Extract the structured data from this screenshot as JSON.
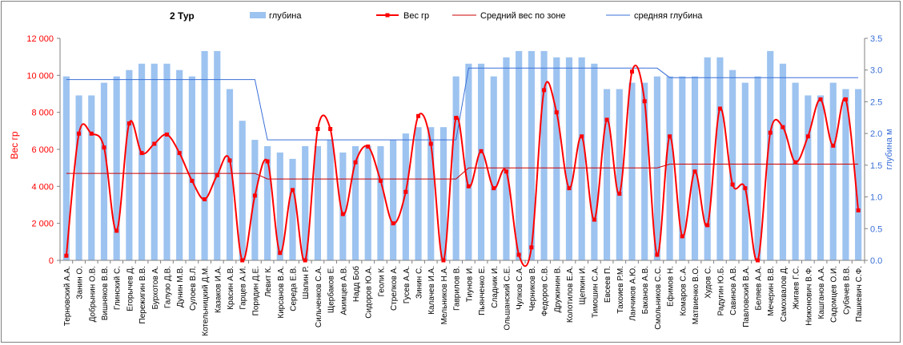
{
  "chart_data": {
    "type": "bar",
    "title": "2 Тур",
    "ylabel": "Вес гр",
    "ylabel_right": "глубина м",
    "ylim": [
      0,
      12000
    ],
    "ylim_right": [
      0,
      3.5
    ],
    "yticks": [
      "0",
      "2 000",
      "4 000",
      "6 000",
      "8 000",
      "10 000",
      "12 000"
    ],
    "yticks_right": [
      "0.0",
      "0.5",
      "1.0",
      "1.5",
      "2.0",
      "2.5",
      "3.0",
      "3.5"
    ],
    "legend_position": "top",
    "colors": {
      "bar": "#9dc3f0",
      "weight": "#ff0000",
      "avg_weight": "#cc0000",
      "avg_depth": "#3a6fd8",
      "left_axis": "#ff0000",
      "right_axis": "#3a6fd8"
    },
    "categories": [
      "Терновский А.А.",
      "Занин О.",
      "Добрынин О.В.",
      "Вишняков В.В.",
      "Глинский С.",
      "Егорычев Д.",
      "Пережигин В.В.",
      "Бурхотов А.",
      "Галузо Д.В.",
      "Дунин М.В.",
      "Сулоев В.Л.",
      "Котельницкий Д.М.",
      "Казаков И.А.",
      "Красин А.В.",
      "Гарцев А.И.",
      "Порядин Д.Е.",
      "Левит К.",
      "Кирсанов В.А.",
      "Середа Е.В.",
      "Шапин Р.",
      "Сильченков С.А.",
      "Щербаков Е.",
      "Акимцев А.В.",
      "Надд Боб",
      "Сидоров Ю.А.",
      "Геоли К.",
      "Стрелков А.",
      "Гусев А.А.",
      "Зинин С.",
      "Калачев И.А.",
      "Мельников Н.А.",
      "Гаврилов В.",
      "Тиунов И.",
      "Пьянченко Е.",
      "Сладник И.",
      "Ольшанский С.Е.",
      "Чулков С.А.",
      "Черников В.",
      "Федоров С.В.",
      "Дружинин В.",
      "Колотилов Е.А.",
      "Щепкин И.",
      "Тимошин С.А.",
      "Евсеев П.",
      "Тахоиев Р.М.",
      "Ланчиков А.Ю.",
      "Баканов А.В.",
      "Смольников С.С.",
      "Ефимов Н.",
      "Комаров С.А.",
      "Матвиенко В.О.",
      "Худов С.",
      "Радугин Ю.Б.",
      "Савинов А.В.",
      "Павловский В.А.",
      "Беляев А.А.",
      "Мечерин В.В.",
      "Самохвалов Д.",
      "Жигаев Г.С.",
      "Нижонович В.Ф.",
      "Кашганов А.А.",
      "Садомцев О.И.",
      "Субачев В.В.",
      "Пашкевич С.Ф."
    ],
    "series": [
      {
        "name": "глубина",
        "axis": "right",
        "type": "bar",
        "values": [
          2.9,
          2.6,
          2.6,
          2.8,
          2.9,
          3.0,
          3.1,
          3.1,
          3.1,
          3.0,
          2.9,
          3.3,
          3.3,
          2.7,
          2.2,
          1.9,
          1.8,
          1.7,
          1.6,
          1.8,
          1.8,
          1.9,
          1.7,
          1.8,
          1.8,
          1.8,
          1.9,
          2.0,
          2.1,
          2.1,
          2.1,
          2.9,
          3.1,
          3.1,
          2.9,
          3.2,
          3.3,
          3.3,
          3.3,
          3.2,
          3.2,
          3.2,
          3.1,
          2.7,
          2.7,
          2.8,
          2.8,
          2.9,
          2.9,
          2.9,
          2.9,
          3.2,
          3.2,
          3.0,
          2.8,
          2.9,
          3.3,
          3.1,
          2.8,
          2.6,
          2.6,
          2.8,
          2.7,
          2.7
        ]
      },
      {
        "name": "Вес гр",
        "axis": "left",
        "type": "line",
        "values": [
          250,
          6850,
          6850,
          6100,
          1600,
          7400,
          5800,
          6300,
          6800,
          5800,
          4300,
          3300,
          4600,
          5400,
          0,
          3500,
          5350,
          400,
          3800,
          0,
          7100,
          7100,
          2500,
          5300,
          6150,
          4300,
          2000,
          3700,
          7800,
          6300,
          0,
          7700,
          4000,
          5900,
          3900,
          4800,
          300,
          700,
          9200,
          8000,
          3900,
          6700,
          2200,
          7600,
          3600,
          10200,
          8600,
          300,
          6700,
          1300,
          4800,
          1900,
          8200,
          4100,
          3900,
          0,
          6900,
          7200,
          5300,
          6700,
          8700,
          6200,
          8700,
          2700
        ]
      },
      {
        "name": "Средний вес по зоне",
        "axis": "left",
        "type": "line",
        "values": [
          4700,
          4700,
          4700,
          4700,
          4700,
          4700,
          4700,
          4700,
          4700,
          4700,
          4700,
          4700,
          4700,
          4700,
          4700,
          4700,
          4400,
          4400,
          4400,
          4400,
          4400,
          4400,
          4400,
          4400,
          4400,
          4400,
          4400,
          4400,
          4400,
          4400,
          4400,
          4400,
          5000,
          5000,
          5000,
          5000,
          5000,
          5000,
          5000,
          5000,
          5000,
          5000,
          5000,
          5000,
          5000,
          5000,
          5000,
          5000,
          5200,
          5200,
          5200,
          5200,
          5200,
          5200,
          5200,
          5200,
          5200,
          5200,
          5200,
          5200,
          5200,
          5200,
          5200,
          5200
        ]
      },
      {
        "name": "средняя глубина",
        "axis": "right",
        "type": "line",
        "values": [
          2.85,
          2.85,
          2.85,
          2.85,
          2.85,
          2.85,
          2.85,
          2.85,
          2.85,
          2.85,
          2.85,
          2.85,
          2.85,
          2.85,
          2.85,
          2.85,
          1.9,
          1.9,
          1.9,
          1.9,
          1.9,
          1.9,
          1.9,
          1.9,
          1.9,
          1.9,
          1.9,
          1.9,
          1.9,
          1.9,
          1.9,
          1.9,
          3.03,
          3.03,
          3.03,
          3.03,
          3.03,
          3.03,
          3.03,
          3.03,
          3.03,
          3.03,
          3.03,
          3.03,
          3.03,
          3.03,
          3.03,
          3.03,
          2.88,
          2.88,
          2.88,
          2.88,
          2.88,
          2.88,
          2.88,
          2.88,
          2.88,
          2.88,
          2.88,
          2.88,
          2.88,
          2.88,
          2.88,
          2.88
        ]
      }
    ]
  }
}
